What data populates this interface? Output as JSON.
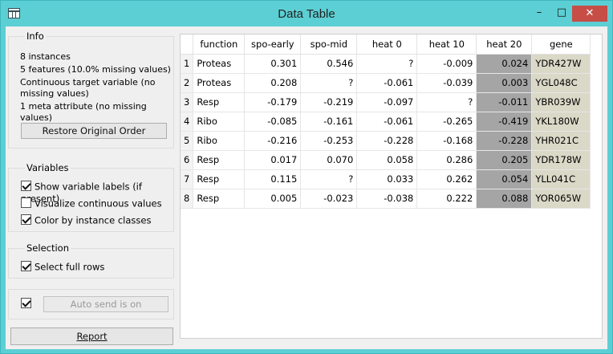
{
  "window": {
    "title": "Data Table",
    "icon": "table-icon",
    "controls": {
      "minimize": "–",
      "maximize": "□",
      "close": "✕"
    }
  },
  "info": {
    "title": "Info",
    "instances": "8 instances",
    "features": "5 features (10.0% missing values)",
    "target": "Continuous target variable (no missing values)",
    "meta": "1 meta attribute (no missing values)",
    "restore_button": "Restore Original Order"
  },
  "variables": {
    "title": "Variables",
    "options": [
      {
        "label": "Show variable labels (if present)",
        "checked": true
      },
      {
        "label": "Visualize continuous values",
        "checked": false
      },
      {
        "label": "Color by instance classes",
        "checked": true
      }
    ]
  },
  "selection": {
    "title": "Selection",
    "select_full_rows": {
      "label": "Select full rows",
      "checked": true
    }
  },
  "autosend": {
    "checked": true,
    "label": "Auto send is on"
  },
  "report": {
    "label": "Report"
  },
  "table": {
    "columns": [
      "function",
      "spo-early",
      "spo-mid",
      "heat 0",
      "heat 10",
      "heat 20",
      "gene"
    ],
    "rows": [
      {
        "n": "1",
        "function": "Proteas",
        "spo_early": "0.301",
        "spo_mid": "0.546",
        "heat0": "?",
        "heat10": "-0.009",
        "heat20": "0.024",
        "gene": "YDR427W"
      },
      {
        "n": "2",
        "function": "Proteas",
        "spo_early": "0.208",
        "spo_mid": "?",
        "heat0": "-0.061",
        "heat10": "-0.039",
        "heat20": "0.003",
        "gene": "YGL048C"
      },
      {
        "n": "3",
        "function": "Resp",
        "spo_early": "-0.179",
        "spo_mid": "-0.219",
        "heat0": "-0.097",
        "heat10": "?",
        "heat20": "-0.011",
        "gene": "YBR039W"
      },
      {
        "n": "4",
        "function": "Ribo",
        "spo_early": "-0.085",
        "spo_mid": "-0.161",
        "heat0": "-0.061",
        "heat10": "-0.265",
        "heat20": "-0.419",
        "gene": "YKL180W"
      },
      {
        "n": "5",
        "function": "Ribo",
        "spo_early": "-0.216",
        "spo_mid": "-0.253",
        "heat0": "-0.228",
        "heat10": "-0.168",
        "heat20": "-0.228",
        "gene": "YHR021C"
      },
      {
        "n": "6",
        "function": "Resp",
        "spo_early": "0.017",
        "spo_mid": "0.070",
        "heat0": "0.058",
        "heat10": "0.286",
        "heat20": "0.205",
        "gene": "YDR178W"
      },
      {
        "n": "7",
        "function": "Resp",
        "spo_early": "0.115",
        "spo_mid": "?",
        "heat0": "0.033",
        "heat10": "0.262",
        "heat20": "0.054",
        "gene": "YLL041C"
      },
      {
        "n": "8",
        "function": "Resp",
        "spo_early": "0.005",
        "spo_mid": "-0.023",
        "heat0": "-0.038",
        "heat10": "0.222",
        "heat20": "0.088",
        "gene": "YOR065W"
      }
    ]
  },
  "colors": {
    "titlebar": "#5ccfd4",
    "close": "#c74d47",
    "target_column": "#a5a5a5",
    "meta_column": "#dad8c7"
  }
}
